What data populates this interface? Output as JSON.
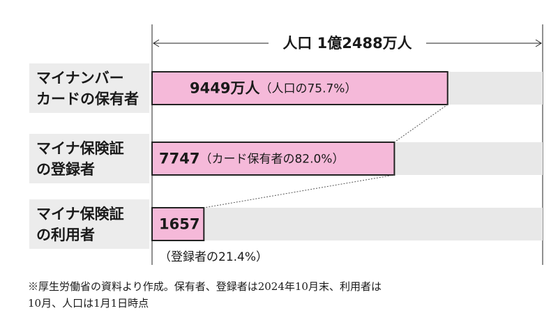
{
  "chart_data": {
    "type": "bar",
    "total_label": "人口 1億2488万人",
    "total": 12488,
    "xlim": [
      0,
      12488
    ],
    "categories": [
      [
        "マイナンバー",
        "カードの保有者"
      ],
      [
        "マイナ保険証",
        "の登録者"
      ],
      [
        "マイナ保険証",
        "の利用者"
      ]
    ],
    "values": [
      9449,
      7747,
      1657
    ],
    "value_labels": [
      "9449万人",
      "7747",
      "1657"
    ],
    "shares": [
      "（人口の75.7%）",
      "（カード保有者の82.0%）",
      "（登録者の21.4%）"
    ],
    "color": "#f5b9d9",
    "background_color": "#e8e8e8",
    "note": [
      "※厚生労働省の資料より作成。保有者、登録者は2024年10月末、利用者は",
      "10月、人口は1月1日時点"
    ]
  }
}
